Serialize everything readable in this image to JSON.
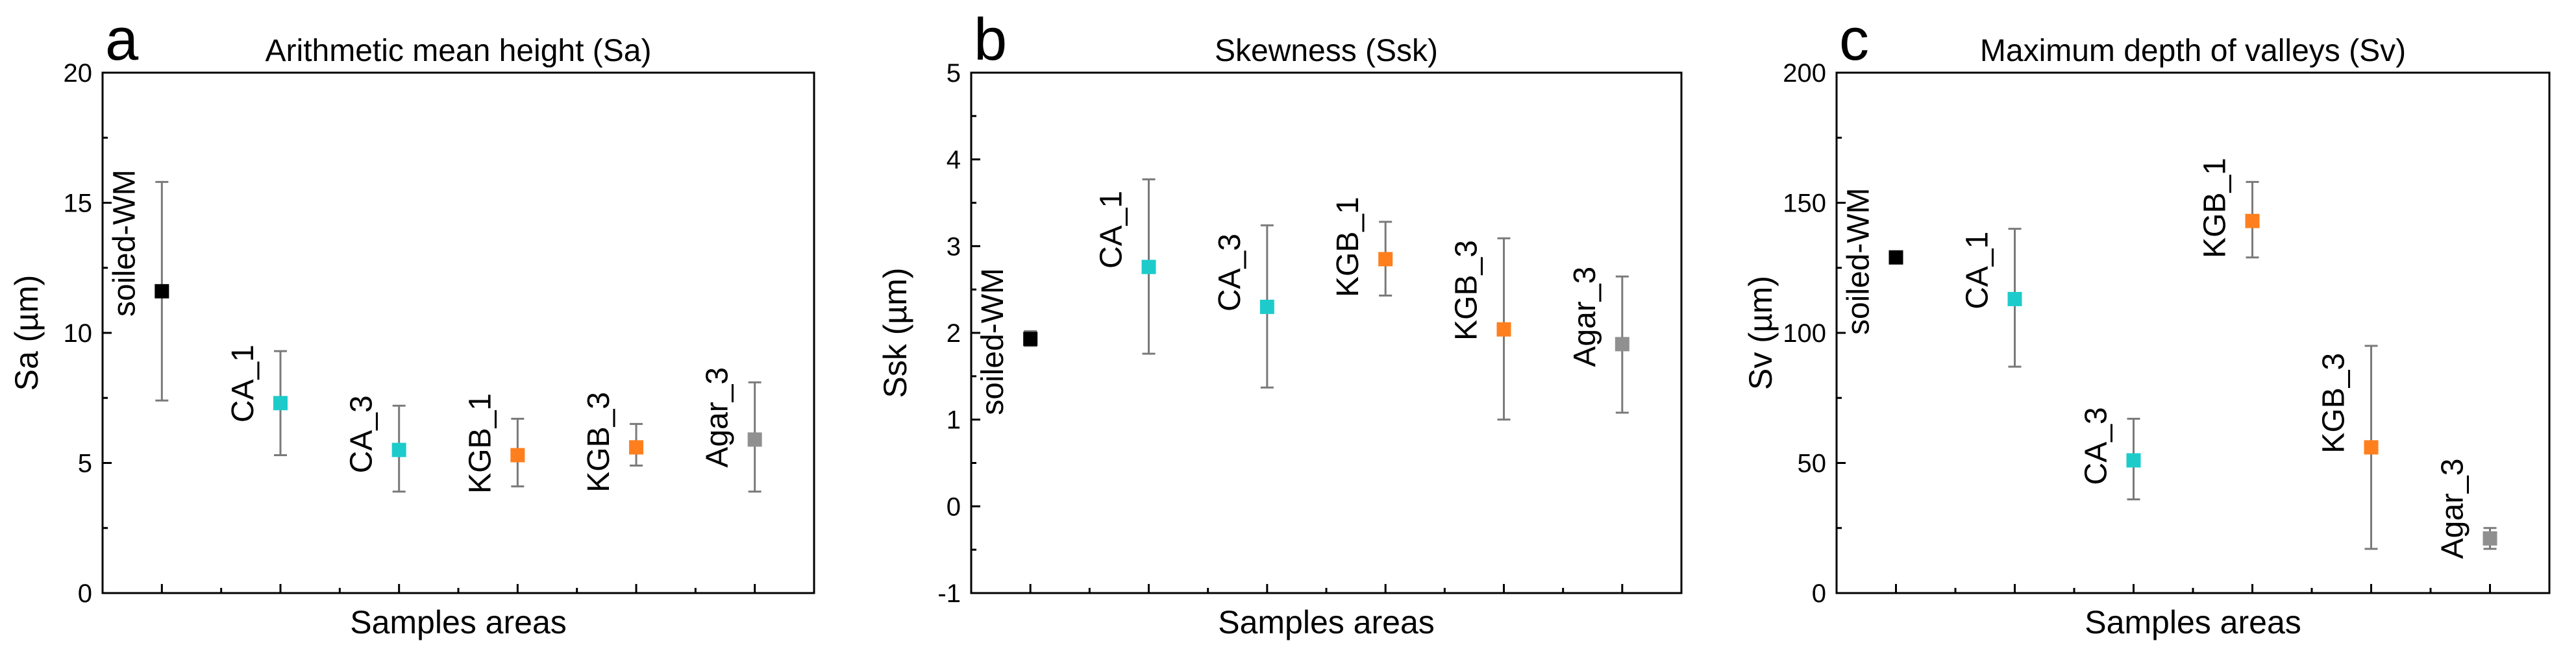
{
  "chart_data": [
    {
      "type": "scatter",
      "panel_letter": "a",
      "title": "Arithmetic mean height (Sa)",
      "xlabel": "Samples areas",
      "ylabel": "Sa (µm)",
      "ylim": [
        0,
        20
      ],
      "yticks": [
        0,
        5,
        10,
        15,
        20
      ],
      "ytick_labels": [
        "0",
        "5",
        "10",
        "15",
        "20"
      ],
      "points": [
        {
          "label": "soiled-WM",
          "value": 11.6,
          "err_low": 7.4,
          "err_high": 15.8,
          "color": "#000000"
        },
        {
          "label": "CA_1",
          "value": 7.3,
          "err_low": 5.3,
          "err_high": 9.3,
          "color": "#1ecbcb"
        },
        {
          "label": "CA_3",
          "value": 5.5,
          "err_low": 3.9,
          "err_high": 7.2,
          "color": "#1ecbcb"
        },
        {
          "label": "KGB_1",
          "value": 5.3,
          "err_low": 4.1,
          "err_high": 6.7,
          "color": "#ff7f1e"
        },
        {
          "label": "KGB_3",
          "value": 5.6,
          "err_low": 4.9,
          "err_high": 6.5,
          "color": "#ff7f1e"
        },
        {
          "label": "Agar_3",
          "value": 5.9,
          "err_low": 3.9,
          "err_high": 8.1,
          "color": "#909090"
        }
      ]
    },
    {
      "type": "scatter",
      "panel_letter": "b",
      "title": "Skewness (Ssk)",
      "xlabel": "Samples areas",
      "ylabel": "Ssk (µm)",
      "ylim": [
        -1,
        5
      ],
      "yticks": [
        -1,
        0,
        1,
        2,
        3,
        4,
        5
      ],
      "ytick_labels": [
        "-1",
        "0",
        "1",
        "2",
        "3",
        "4",
        "5"
      ],
      "points": [
        {
          "label": "soiled-WM",
          "value": 1.93,
          "err_low": 1.85,
          "err_high": 2.02,
          "color": "#000000"
        },
        {
          "label": "CA_1",
          "value": 2.76,
          "err_low": 1.76,
          "err_high": 3.77,
          "color": "#1ecbcb"
        },
        {
          "label": "CA_3",
          "value": 2.3,
          "err_low": 1.37,
          "err_high": 3.24,
          "color": "#1ecbcb"
        },
        {
          "label": "KGB_1",
          "value": 2.85,
          "err_low": 2.43,
          "err_high": 3.28,
          "color": "#ff7f1e"
        },
        {
          "label": "KGB_3",
          "value": 2.04,
          "err_low": 1.0,
          "err_high": 3.09,
          "color": "#ff7f1e"
        },
        {
          "label": "Agar_3",
          "value": 1.87,
          "err_low": 1.08,
          "err_high": 2.65,
          "color": "#909090"
        }
      ]
    },
    {
      "type": "scatter",
      "panel_letter": "c",
      "title": "Maximum depth of valleys (Sv)",
      "xlabel": "Samples areas",
      "ylabel": "Sv (µm)",
      "ylim": [
        0,
        200
      ],
      "yticks": [
        0,
        50,
        100,
        150,
        200
      ],
      "ytick_labels": [
        "0",
        "50",
        "100",
        "150",
        "200"
      ],
      "points": [
        {
          "label": "soiled-WM",
          "value": 129,
          "err_low": 127,
          "err_high": 131,
          "color": "#000000"
        },
        {
          "label": "CA_1",
          "value": 113,
          "err_low": 87,
          "err_high": 140,
          "color": "#1ecbcb"
        },
        {
          "label": "CA_3",
          "value": 51,
          "err_low": 36,
          "err_high": 67,
          "color": "#1ecbcb"
        },
        {
          "label": "KGB_1",
          "value": 143,
          "err_low": 129,
          "err_high": 158,
          "color": "#ff7f1e"
        },
        {
          "label": "KGB_3",
          "value": 56,
          "err_low": 17,
          "err_high": 95,
          "color": "#ff7f1e"
        },
        {
          "label": "Agar_3",
          "value": 21,
          "err_low": 17,
          "err_high": 25,
          "color": "#909090"
        }
      ]
    }
  ]
}
